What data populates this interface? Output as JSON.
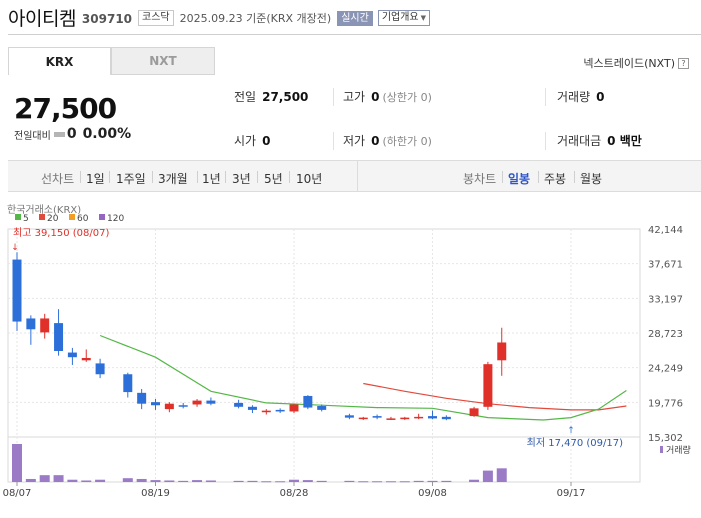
{
  "header": {
    "name": "아이티켐",
    "code": "309710",
    "market": "코스닥",
    "date": "2025.09.23",
    "basis": "기준(KRX 개장전)",
    "live_label": "실시간",
    "overview_label": "기업개요"
  },
  "tabs": {
    "krx": "KRX",
    "nxt": "NXT"
  },
  "nxt_link": "넥스트레이드(NXT)",
  "help_glyph": "?",
  "quote": {
    "price": "27,500",
    "change_label": "전일대비",
    "change": "0",
    "rate": "0.00%"
  },
  "info": {
    "prev_label": "전일",
    "prev": "27,500",
    "high_label": "고가",
    "high": "0",
    "high_sub": "(상한가 0)",
    "volume_label": "거래량",
    "volume": "0",
    "open_label": "시가",
    "open": "0",
    "low_label": "저가",
    "low": "0",
    "low_sub": "(하한가 0)",
    "amount_label": "거래대금",
    "amount": "0 백만"
  },
  "period_bar": {
    "line_label": "선차트",
    "line_items": [
      "1일",
      "1주일",
      "3개월",
      "1년",
      "3년",
      "5년",
      "10년"
    ],
    "candle_label": "봉차트",
    "candle_items": [
      "일봉",
      "주봉",
      "월봉"
    ],
    "active": "일봉"
  },
  "colors": {
    "up": "#e0302a",
    "down": "#2d6fd8",
    "ma5": "#55b748",
    "ma20": "#e24a3b",
    "ma60": "#f29d23",
    "ma120": "#9466c1",
    "volume": "#9b7bc6"
  },
  "chart_data": {
    "type": "candlestick",
    "source": "한국거래소(KRX)",
    "legend": [
      {
        "name": "5",
        "color": "#55b748"
      },
      {
        "name": "20",
        "color": "#e24a3b"
      },
      {
        "name": "60",
        "color": "#f29d23"
      },
      {
        "name": "120",
        "color": "#9466c1"
      }
    ],
    "y_ticks": [
      "42,144",
      "37,671",
      "33,197",
      "28,723",
      "24,249",
      "19,776",
      "15,302"
    ],
    "y_range": [
      15302,
      42144
    ],
    "x_ticks": [
      {
        "label": "08/07",
        "index": 0
      },
      {
        "label": "08/19",
        "index": 10
      },
      {
        "label": "08/28",
        "index": 20
      },
      {
        "label": "09/08",
        "index": 30
      },
      {
        "label": "09/17",
        "index": 40
      }
    ],
    "high_annotation": {
      "label": "최고 39,150 (08/07)",
      "index": 0,
      "value": 39150
    },
    "low_annotation": {
      "label": "최저 17,470 (09/17)",
      "index": 40,
      "value": 17470
    },
    "volume_label": "거래량",
    "candles": [
      {
        "date": "08/07",
        "open": 38200,
        "high": 39150,
        "low": 29000,
        "close": 30200,
        "volume": 100
      },
      {
        "date": "08/08",
        "open": 30600,
        "high": 31000,
        "low": 27200,
        "close": 29200,
        "volume": 8
      },
      {
        "date": "08/11",
        "open": 28800,
        "high": 31200,
        "low": 28000,
        "close": 30600,
        "volume": 18
      },
      {
        "date": "08/12",
        "open": 30000,
        "high": 31800,
        "low": 25800,
        "close": 26400,
        "volume": 18
      },
      {
        "date": "08/13",
        "open": 26200,
        "high": 26800,
        "low": 24600,
        "close": 25600,
        "volume": 6
      },
      {
        "date": "08/14",
        "open": 25200,
        "high": 26600,
        "low": 25000,
        "close": 25500,
        "volume": 4
      },
      {
        "date": "08/18",
        "open": 24800,
        "high": 25400,
        "low": 22900,
        "close": 23400,
        "volume": 6
      },
      {
        "date": "08/19",
        "open": 23400,
        "high": 23600,
        "low": 20400,
        "close": 21100,
        "volume": 10
      },
      {
        "date": "08/20",
        "open": 21000,
        "high": 21500,
        "low": 18900,
        "close": 19600,
        "volume": 8
      },
      {
        "date": "08/21",
        "open": 19800,
        "high": 20200,
        "low": 18800,
        "close": 19400,
        "volume": 5
      },
      {
        "date": "08/22",
        "open": 18900,
        "high": 19800,
        "low": 18500,
        "close": 19600,
        "volume": 4
      },
      {
        "date": "08/25",
        "open": 19400,
        "high": 19700,
        "low": 19000,
        "close": 19300,
        "volume": 3
      },
      {
        "date": "08/26",
        "open": 19500,
        "high": 20200,
        "low": 19200,
        "close": 20000,
        "volume": 5
      },
      {
        "date": "08/27",
        "open": 20000,
        "high": 20400,
        "low": 19400,
        "close": 19600,
        "volume": 4
      },
      {
        "date": "08/28",
        "open": 19700,
        "high": 20100,
        "low": 19000,
        "close": 19200,
        "volume": 3
      },
      {
        "date": "08/29",
        "open": 19200,
        "high": 19400,
        "low": 18400,
        "close": 18800,
        "volume": 3
      },
      {
        "date": "09/01",
        "open": 18500,
        "high": 18900,
        "low": 18200,
        "close": 18700,
        "volume": 2
      },
      {
        "date": "09/02",
        "open": 18800,
        "high": 19000,
        "low": 18400,
        "close": 18600,
        "volume": 2
      },
      {
        "date": "09/03",
        "open": 18600,
        "high": 19600,
        "low": 18400,
        "close": 19500,
        "volume": 6
      },
      {
        "date": "09/04",
        "open": 20600,
        "high": 20700,
        "low": 18900,
        "close": 19100,
        "volume": 5
      },
      {
        "date": "09/05",
        "open": 19300,
        "high": 19500,
        "low": 18600,
        "close": 18800,
        "volume": 3
      },
      {
        "date": "09/08",
        "open": 18100,
        "high": 18300,
        "low": 17600,
        "close": 17800,
        "volume": 3
      },
      {
        "date": "09/09",
        "open": 17700,
        "high": 17900,
        "low": 17500,
        "close": 17800,
        "volume": 2
      },
      {
        "date": "09/10",
        "open": 18000,
        "high": 18200,
        "low": 17600,
        "close": 17800,
        "volume": 2
      },
      {
        "date": "09/11",
        "open": 17700,
        "high": 17900,
        "low": 17500,
        "close": 17700,
        "volume": 2
      },
      {
        "date": "09/12",
        "open": 17600,
        "high": 17900,
        "low": 17500,
        "close": 17800,
        "volume": 2
      },
      {
        "date": "09/15",
        "open": 17800,
        "high": 18300,
        "low": 17600,
        "close": 17900,
        "volume": 3
      },
      {
        "date": "09/16",
        "open": 18000,
        "high": 18700,
        "low": 17600,
        "close": 17700,
        "volume": 3
      },
      {
        "date": "09/17",
        "open": 17900,
        "high": 18100,
        "low": 17470,
        "close": 17600,
        "volume": 3
      },
      {
        "date": "09/18",
        "open": 18000,
        "high": 19200,
        "low": 17900,
        "close": 19000,
        "volume": 6
      },
      {
        "date": "09/19",
        "open": 19200,
        "high": 25000,
        "low": 18800,
        "close": 24700,
        "volume": 30
      },
      {
        "date": "09/22",
        "open": 25200,
        "high": 29400,
        "low": 23200,
        "close": 27500,
        "volume": 36
      }
    ],
    "candle_index": [
      0,
      1,
      2,
      3,
      4,
      5,
      6,
      8,
      9,
      10,
      11,
      12,
      13,
      14,
      16,
      17,
      18,
      19,
      20,
      21,
      22,
      24,
      25,
      26,
      27,
      28,
      29,
      30,
      31,
      33,
      34,
      35
    ],
    "ma5": [
      {
        "index": 6,
        "value": 28400
      },
      {
        "index": 10,
        "value": 25600
      },
      {
        "index": 14,
        "value": 21200
      },
      {
        "index": 18,
        "value": 19700
      },
      {
        "index": 22,
        "value": 19400
      },
      {
        "index": 26,
        "value": 19100
      },
      {
        "index": 30,
        "value": 19000
      },
      {
        "index": 34,
        "value": 17800
      },
      {
        "index": 38,
        "value": 17500
      },
      {
        "index": 40,
        "value": 17800
      },
      {
        "index": 42,
        "value": 18900
      },
      {
        "index": 44,
        "value": 21300
      }
    ],
    "ma20": [
      {
        "index": 25,
        "value": 22200
      },
      {
        "index": 28,
        "value": 21200
      },
      {
        "index": 31,
        "value": 20300
      },
      {
        "index": 34,
        "value": 19600
      },
      {
        "index": 37,
        "value": 19100
      },
      {
        "index": 40,
        "value": 18800
      },
      {
        "index": 42,
        "value": 18800
      },
      {
        "index": 44,
        "value": 19300
      }
    ]
  }
}
